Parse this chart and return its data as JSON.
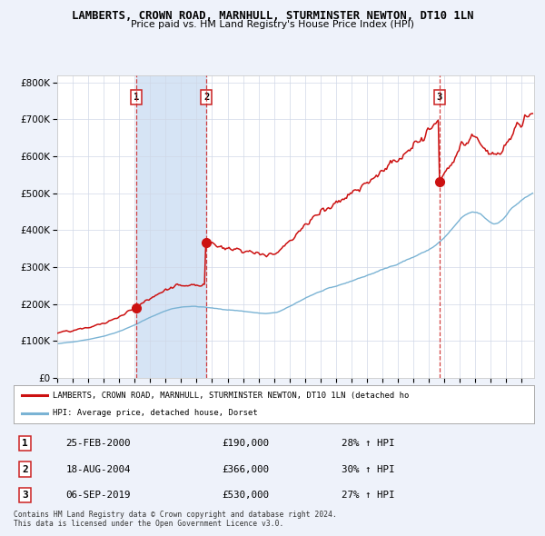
{
  "title": "LAMBERTS, CROWN ROAD, MARNHULL, STURMINSTER NEWTON, DT10 1LN",
  "subtitle": "Price paid vs. HM Land Registry's House Price Index (HPI)",
  "legend_red": "LAMBERTS, CROWN ROAD, MARNHULL, STURMINSTER NEWTON, DT10 1LN (detached ho",
  "legend_blue": "HPI: Average price, detached house, Dorset",
  "footer1": "Contains HM Land Registry data © Crown copyright and database right 2024.",
  "footer2": "This data is licensed under the Open Government Licence v3.0.",
  "transactions": [
    {
      "num": 1,
      "date": "25-FEB-2000",
      "price": "£190,000",
      "change": "28% ↑ HPI",
      "year": 2000.12,
      "price_val": 190000
    },
    {
      "num": 2,
      "date": "18-AUG-2004",
      "price": "£366,000",
      "change": "30% ↑ HPI",
      "year": 2004.63,
      "price_val": 366000
    },
    {
      "num": 3,
      "date": "06-SEP-2019",
      "price": "£530,000",
      "change": "27% ↑ HPI",
      "year": 2019.68,
      "price_val": 530000
    }
  ],
  "ylim_max": 800000,
  "xlim_start": 1995.0,
  "xlim_end": 2025.8,
  "bg_color": "#eef2fa",
  "plot_bg": "#ffffff",
  "shade_color": "#d6e4f5"
}
